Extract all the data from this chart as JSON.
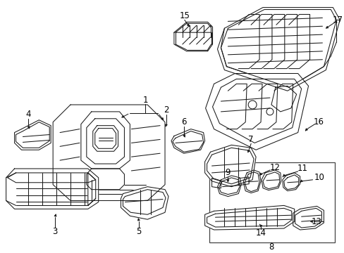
{
  "background_color": "#ffffff",
  "line_color": "#1a1a1a",
  "label_color": "#000000",
  "fig_width": 4.89,
  "fig_height": 3.6,
  "dpi": 100,
  "font_size": 8.5,
  "lw": 0.75
}
